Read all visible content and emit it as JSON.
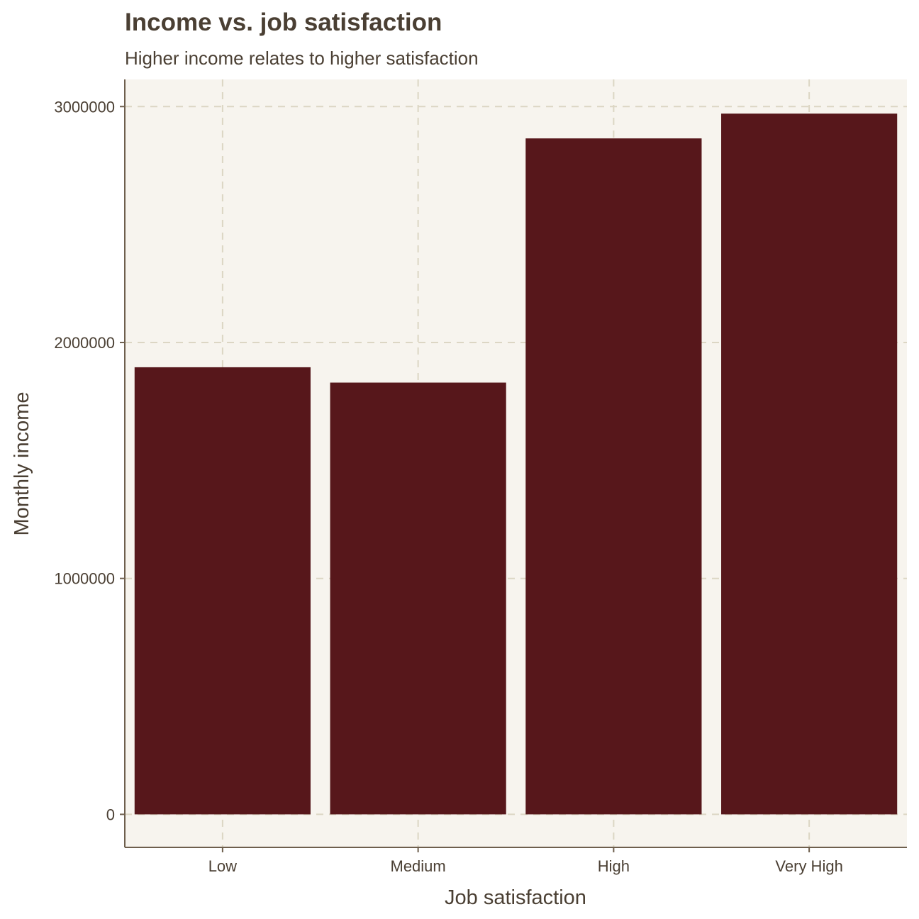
{
  "chart_data": {
    "type": "bar",
    "title": "Income vs. job satisfaction",
    "subtitle": "Higher income relates to higher satisfaction",
    "xlabel": "Job satisfaction",
    "ylabel": "Monthly income",
    "categories": [
      "Low",
      "Medium",
      "High",
      "Very High"
    ],
    "values": [
      1895000,
      1830000,
      2865000,
      2970000
    ],
    "ylim": [
      -140000,
      3115000
    ],
    "yticks": [
      0,
      1000000,
      2000000,
      3000000
    ],
    "ytick_labels": [
      "0",
      "1000000",
      "2000000",
      "3000000"
    ],
    "grid": true,
    "legend": "none",
    "colors": {
      "bar": "#57171b",
      "panel_background": "#f7f4ee",
      "text": "#4a3f33"
    }
  }
}
